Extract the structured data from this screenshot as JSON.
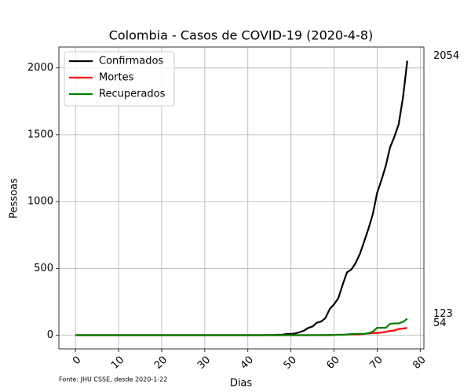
{
  "chart_data": {
    "type": "line",
    "title": "Colombia - Casos de COVID-19 (2020-4-8)",
    "xlabel": "Dias",
    "ylabel": "Pessoas",
    "annotation": "Fonte: JHU CSSE, desde 2020-1-22",
    "x": [
      0,
      1,
      2,
      3,
      4,
      5,
      6,
      7,
      8,
      9,
      10,
      11,
      12,
      13,
      14,
      15,
      16,
      17,
      18,
      19,
      20,
      21,
      22,
      23,
      24,
      25,
      26,
      27,
      28,
      29,
      30,
      31,
      32,
      33,
      34,
      35,
      36,
      37,
      38,
      39,
      40,
      41,
      42,
      43,
      44,
      45,
      46,
      47,
      48,
      49,
      50,
      51,
      52,
      53,
      54,
      55,
      56,
      57,
      58,
      59,
      60,
      61,
      62,
      63,
      64,
      65,
      66,
      67,
      68,
      69,
      70,
      71,
      72,
      73,
      74,
      75,
      76,
      77
    ],
    "series": [
      {
        "name": "Confirmados",
        "color": "#000000",
        "values": [
          0,
          0,
          0,
          0,
          0,
          0,
          0,
          0,
          0,
          0,
          0,
          0,
          0,
          0,
          0,
          0,
          0,
          0,
          0,
          0,
          0,
          0,
          0,
          0,
          0,
          0,
          0,
          0,
          0,
          0,
          0,
          0,
          0,
          0,
          0,
          0,
          0,
          0,
          0,
          0,
          0,
          0,
          0,
          0,
          1,
          1,
          1,
          3,
          3,
          9,
          9,
          13,
          22,
          34,
          54,
          65,
          93,
          102,
          128,
          196,
          231,
          277,
          378,
          470,
          491,
          539,
          608,
          702,
          798,
          906,
          1065,
          1161,
          1267,
          1406,
          1485,
          1579,
          1780,
          2054
        ]
      },
      {
        "name": "Mortes",
        "color": "#ff0000",
        "values": [
          0,
          0,
          0,
          0,
          0,
          0,
          0,
          0,
          0,
          0,
          0,
          0,
          0,
          0,
          0,
          0,
          0,
          0,
          0,
          0,
          0,
          0,
          0,
          0,
          0,
          0,
          0,
          0,
          0,
          0,
          0,
          0,
          0,
          0,
          0,
          0,
          0,
          0,
          0,
          0,
          0,
          0,
          0,
          0,
          0,
          0,
          0,
          0,
          0,
          0,
          0,
          0,
          0,
          0,
          0,
          0,
          0,
          0,
          0,
          0,
          2,
          3,
          3,
          4,
          6,
          6,
          6,
          10,
          12,
          16,
          17,
          19,
          25,
          32,
          35,
          46,
          50,
          54
        ]
      },
      {
        "name": "Recuperados",
        "color": "#008000",
        "values": [
          0,
          0,
          0,
          0,
          0,
          0,
          0,
          0,
          0,
          0,
          0,
          0,
          0,
          0,
          0,
          0,
          0,
          0,
          0,
          0,
          0,
          0,
          0,
          0,
          0,
          0,
          0,
          0,
          0,
          0,
          0,
          0,
          0,
          0,
          0,
          0,
          0,
          0,
          0,
          0,
          0,
          0,
          0,
          0,
          0,
          0,
          0,
          0,
          0,
          0,
          0,
          0,
          0,
          0,
          0,
          0,
          1,
          1,
          1,
          2,
          2,
          3,
          3,
          5,
          8,
          10,
          10,
          10,
          15,
          26,
          55,
          55,
          55,
          85,
          88,
          88,
          100,
          123
        ]
      }
    ],
    "xlim": [
      -3.85,
      80.85
    ],
    "ylim": [
      -102.7,
      2156.7
    ],
    "xticks": [
      0,
      10,
      20,
      30,
      40,
      50,
      60,
      70,
      80
    ],
    "yticks": [
      0,
      500,
      1000,
      1500,
      2000
    ],
    "grid": true,
    "legend": "upper left"
  }
}
